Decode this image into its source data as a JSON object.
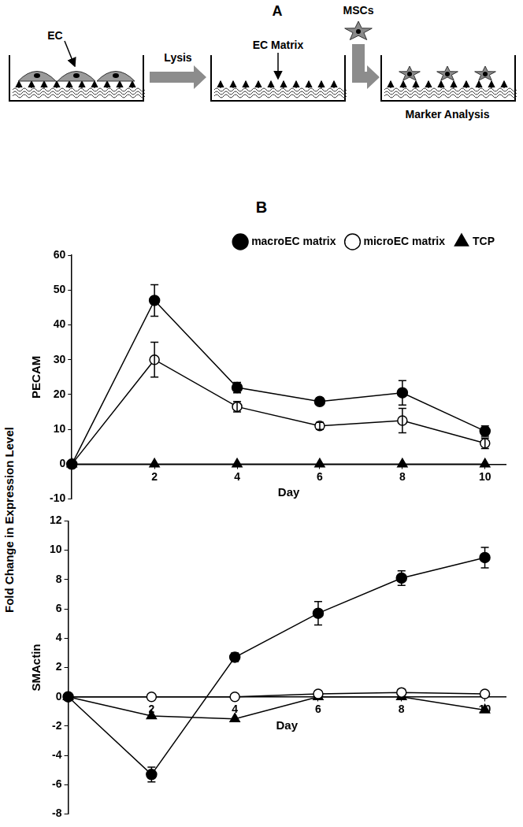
{
  "panel_a": {
    "label": "A",
    "cell_label": "EC",
    "step_label": "Lysis",
    "matrix_label": "EC Matrix",
    "added_cells_label": "MSCs",
    "result_label": "Marker Analysis"
  },
  "panel_b_label": "B",
  "shared_ylabel": "Fold Change in Expression Level",
  "chart_data": [
    {
      "type": "line",
      "ylabel": "PECAM",
      "xlabel": "Day",
      "x": [
        0,
        2,
        4,
        6,
        8,
        10
      ],
      "xlim": [
        0,
        10.5
      ],
      "xticks": [
        2,
        4,
        6,
        8,
        10
      ],
      "ylim": [
        -10,
        60
      ],
      "yticks": [
        -10,
        0,
        10,
        20,
        30,
        40,
        50,
        60
      ],
      "grid": false,
      "legend": "upper right",
      "series": [
        {
          "name": "macroEC matrix",
          "color": "#000000",
          "marker": "filled_circle",
          "values": [
            0,
            47,
            22,
            18,
            20.5,
            9.5
          ],
          "errors": [
            0,
            4.5,
            1.5,
            1,
            3.5,
            1.5
          ]
        },
        {
          "name": "microEC matrix",
          "color": "#000000",
          "marker": "open_circle",
          "values": [
            0,
            30,
            16.5,
            11,
            12.5,
            6
          ],
          "errors": [
            0,
            5,
            1.5,
            1,
            3.5,
            1.5
          ]
        },
        {
          "name": "TCP",
          "color": "#000000",
          "marker": "triangle",
          "values": [
            0,
            0,
            0,
            0,
            0,
            0
          ]
        }
      ]
    },
    {
      "type": "line",
      "ylabel": "SMActin",
      "xlabel": "Day",
      "x": [
        0,
        2,
        4,
        6,
        8,
        10
      ],
      "xlim": [
        0,
        10.5
      ],
      "xticks": [
        2,
        4,
        6,
        8,
        10
      ],
      "ylim": [
        -8,
        12
      ],
      "yticks": [
        -8,
        -6,
        -4,
        -2,
        0,
        2,
        4,
        6,
        8,
        10,
        12
      ],
      "grid": false,
      "series": [
        {
          "name": "macroEC matrix",
          "color": "#000000",
          "marker": "filled_circle",
          "values": [
            0,
            -5.3,
            2.7,
            5.7,
            8.1,
            9.5
          ],
          "errors": [
            0,
            0.5,
            0.3,
            0.8,
            0.5,
            0.7
          ]
        },
        {
          "name": "microEC matrix",
          "color": "#000000",
          "marker": "open_circle",
          "values": [
            0,
            0,
            0,
            0.2,
            0.3,
            0.2
          ]
        },
        {
          "name": "TCP",
          "color": "#000000",
          "marker": "triangle",
          "values": [
            0,
            -1.3,
            -1.5,
            0,
            0,
            -0.9
          ]
        }
      ]
    }
  ]
}
